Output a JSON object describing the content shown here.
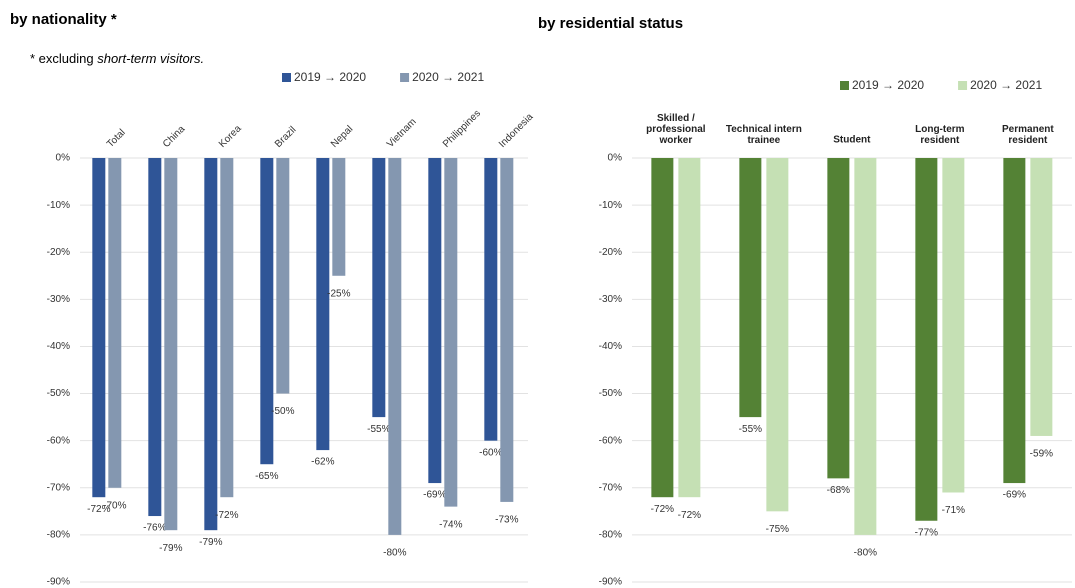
{
  "chart_data": [
    {
      "type": "bar",
      "title": "by nationality *",
      "note": [
        "* excluding ",
        "short-term visitors."
      ],
      "categories": [
        "Total",
        "China",
        "Korea",
        "Brazil",
        "Nepal",
        "Vietnam",
        "Philippines",
        "Indonesia"
      ],
      "series": [
        {
          "name": "2019 → 2020",
          "color": "#2f5597",
          "values": [
            -72,
            -76,
            -79,
            -65,
            -62,
            -55,
            -69,
            -60
          ],
          "value_labels": [
            "-72%",
            "-76%",
            "-79%",
            "-65%",
            "-62%",
            "-55%",
            "-69%",
            "-60%"
          ]
        },
        {
          "name": "2020 → 2021",
          "color": "#8497b0",
          "values": [
            -70,
            -79,
            -72,
            -50,
            -25,
            -80,
            -74,
            -73
          ],
          "value_labels": [
            "-70%",
            "-79%",
            "-72%",
            "-50%",
            "-25%",
            "-80%",
            "-74%",
            "-73%"
          ]
        }
      ],
      "ylim": [
        -90,
        0
      ],
      "yticks": [
        {
          "value": 0,
          "label": "0%"
        },
        {
          "value": -10,
          "label": "-10%"
        },
        {
          "value": -20,
          "label": "-20%"
        },
        {
          "value": -30,
          "label": "-30%"
        },
        {
          "value": -40,
          "label": "-40%"
        },
        {
          "value": -50,
          "label": "-50%"
        },
        {
          "value": -60,
          "label": "-60%"
        },
        {
          "value": -70,
          "label": "-70%"
        },
        {
          "value": -80,
          "label": "-80%"
        },
        {
          "value": -90,
          "label": "-90%"
        }
      ],
      "grid": true
    },
    {
      "type": "bar",
      "title": "by residential status",
      "categories": [
        "Skilled /\nprofessional\nworker",
        "Technical intern\ntrainee",
        "Student",
        "Long-term\nresident",
        "Permanent\nresident"
      ],
      "series": [
        {
          "name": "2019 → 2020",
          "color": "#548235",
          "values": [
            -72,
            -55,
            -68,
            -77,
            -69
          ],
          "value_labels": [
            "-72%",
            "-55%",
            "-68%",
            "-77%",
            "-69%"
          ]
        },
        {
          "name": "2020 → 2021",
          "color": "#c5e0b4",
          "values": [
            -72,
            -75,
            -80,
            -71,
            -59
          ],
          "value_labels": [
            "-72%",
            "-75%",
            "-80%",
            "-71%",
            "-59%"
          ]
        }
      ],
      "ylim": [
        -90,
        0
      ],
      "yticks": [
        {
          "value": 0,
          "label": "0%"
        },
        {
          "value": -10,
          "label": "-10%"
        },
        {
          "value": -20,
          "label": "-20%"
        },
        {
          "value": -30,
          "label": "-30%"
        },
        {
          "value": -40,
          "label": "-40%"
        },
        {
          "value": -50,
          "label": "-50%"
        },
        {
          "value": -60,
          "label": "-60%"
        },
        {
          "value": -70,
          "label": "-70%"
        },
        {
          "value": -80,
          "label": "-80%"
        },
        {
          "value": -90,
          "label": "-90%"
        }
      ],
      "grid": true
    }
  ]
}
